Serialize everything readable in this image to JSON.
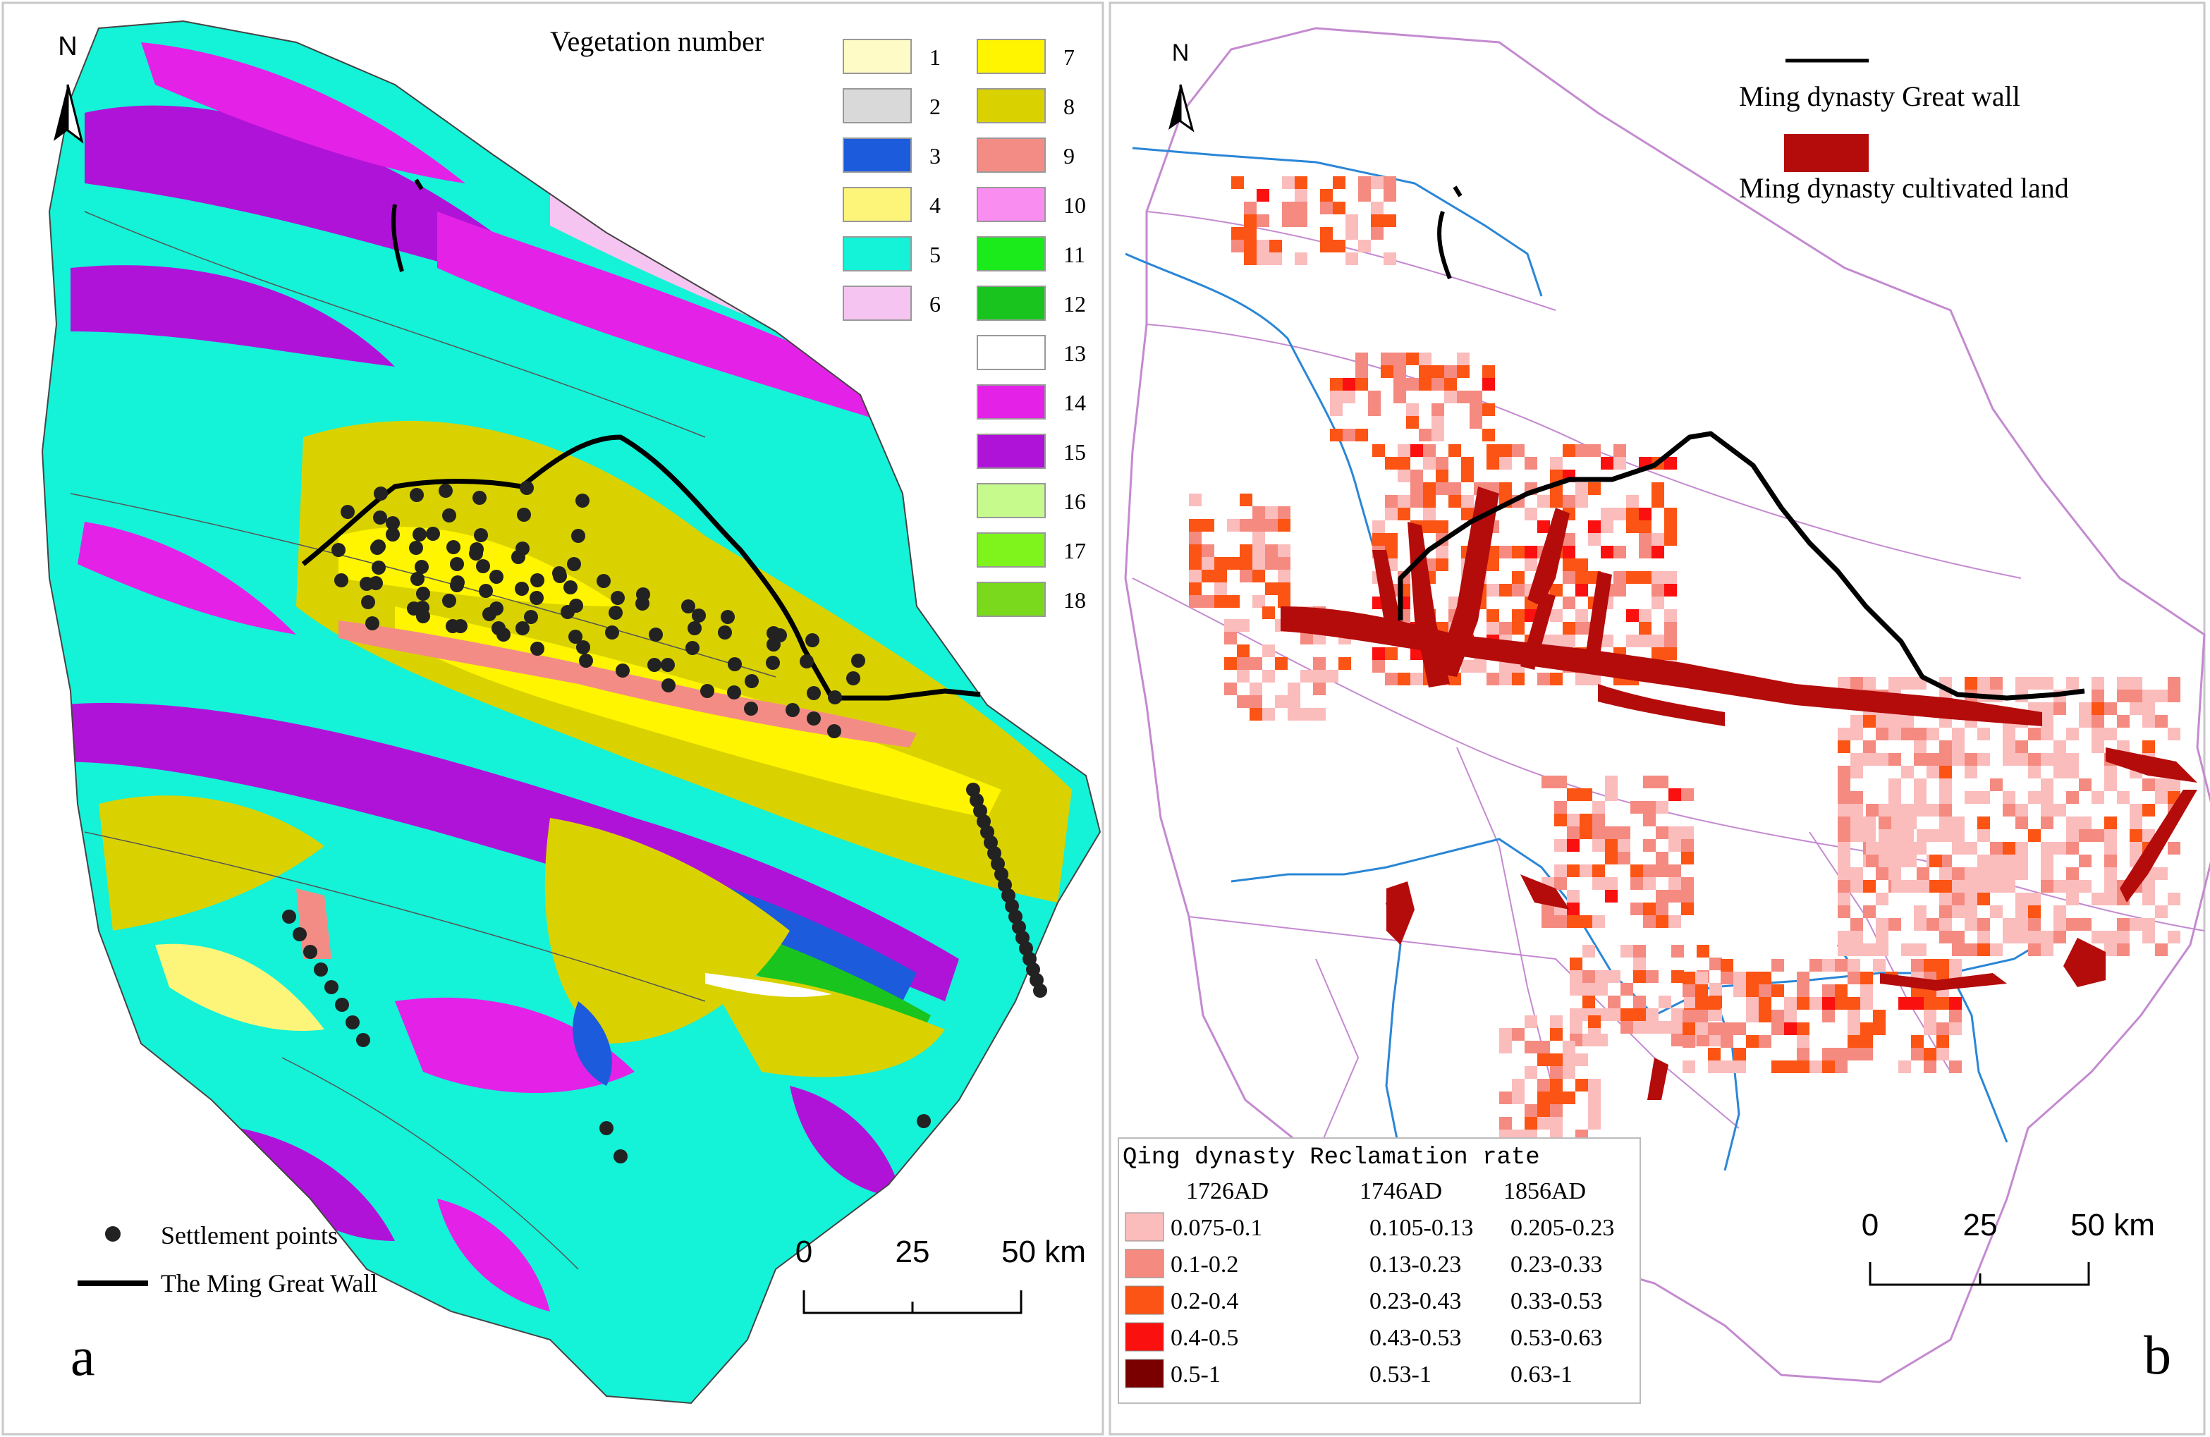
{
  "panel_a": {
    "label": "a",
    "north": "N",
    "legend_title": "Vegetation number",
    "vegetation_classes": [
      {
        "number": "1",
        "color": "#fffbc6"
      },
      {
        "number": "2",
        "color": "#d9d9d9"
      },
      {
        "number": "3",
        "color": "#1c5bdb"
      },
      {
        "number": "4",
        "color": "#fdf57a"
      },
      {
        "number": "5",
        "color": "#14f2d8"
      },
      {
        "number": "6",
        "color": "#f6c4f0"
      },
      {
        "number": "7",
        "color": "#fff500"
      },
      {
        "number": "8",
        "color": "#d9d200"
      },
      {
        "number": "9",
        "color": "#f48c86"
      },
      {
        "number": "10",
        "color": "#f98df0"
      },
      {
        "number": "11",
        "color": "#1bea1b"
      },
      {
        "number": "12",
        "color": "#19c41f"
      },
      {
        "number": "13",
        "color": "#ffffff"
      },
      {
        "number": "14",
        "color": "#e421e6"
      },
      {
        "number": "15",
        "color": "#b013d8"
      },
      {
        "number": "16",
        "color": "#c6fa8c"
      },
      {
        "number": "17",
        "color": "#7ef41c"
      },
      {
        "number": "18",
        "color": "#7ad91c"
      }
    ],
    "settlement_label": "Settlement points",
    "wall_label": "The Ming Great Wall",
    "scale_ticks": [
      "0",
      "25",
      "50 km"
    ]
  },
  "panel_b": {
    "label": "b",
    "north": "N",
    "legend_wall": "Ming dynasty Great wall",
    "legend_cultivated": "Ming dynasty cultivated land",
    "cultivated_color": "#b40b0b",
    "reclamation_title": "Qing dynasty Reclamation rate",
    "years": [
      "1726AD",
      "1746AD",
      "1856AD"
    ],
    "classes": [
      {
        "color": "#fbbcbc",
        "values": [
          "0.075-0.1",
          "0.105-0.13",
          "0.205-0.23"
        ]
      },
      {
        "color": "#f58a80",
        "values": [
          "0.1-0.2",
          "0.13-0.23",
          "0.23-0.33"
        ]
      },
      {
        "color": "#fc5414",
        "values": [
          "0.2-0.4",
          "0.23-0.43",
          "0.33-0.53"
        ]
      },
      {
        "color": "#fb1010",
        "values": [
          "0.4-0.5",
          "0.43-0.53",
          "0.53-0.63"
        ]
      },
      {
        "color": "#7a0000",
        "values": [
          "0.5-1",
          "0.53-1",
          "0.63-1"
        ]
      }
    ],
    "scale_ticks": [
      "0",
      "25",
      "50 km"
    ]
  }
}
